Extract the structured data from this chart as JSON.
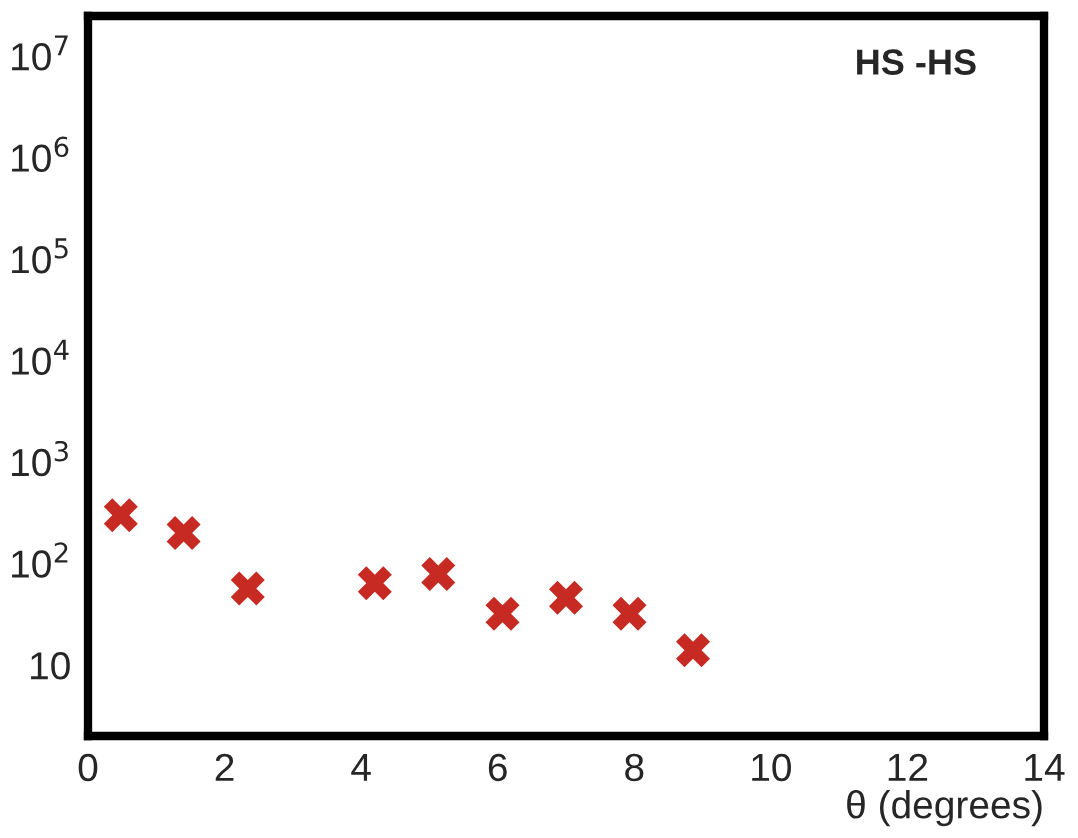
{
  "chart_data": {
    "type": "scatter",
    "xlabel": "θ (degrees)",
    "annotations": [
      "HS -HS"
    ],
    "x": [
      0.48,
      1.4,
      2.34,
      4.2,
      5.13,
      6.07,
      7.0,
      7.93,
      8.86
    ],
    "series": [
      {
        "color": "#c62a22",
        "values": [
          300,
          200,
          57,
          64,
          79,
          32,
          46,
          32,
          14
        ]
      }
    ],
    "xlim": [
      0,
      14
    ],
    "xticks": [
      0,
      2,
      4,
      6,
      8,
      10,
      12,
      14
    ],
    "ylim": [
      2,
      25000000
    ],
    "log": true,
    "yticks": [
      10,
      {
        "value": 100,
        "label": "10$^{2}$"
      },
      {
        "value": 1000,
        "label": "10$^{3}$"
      },
      {
        "value": 10000,
        "label": "10$^{4}$"
      },
      {
        "value": 100000,
        "label": "10$^{5}$"
      },
      {
        "value": 1000000,
        "label": "10$^{6}$"
      },
      {
        "value": 10000000,
        "label": "10$^{7}$"
      }
    ],
    "marker": "cross",
    "grid": false
  }
}
